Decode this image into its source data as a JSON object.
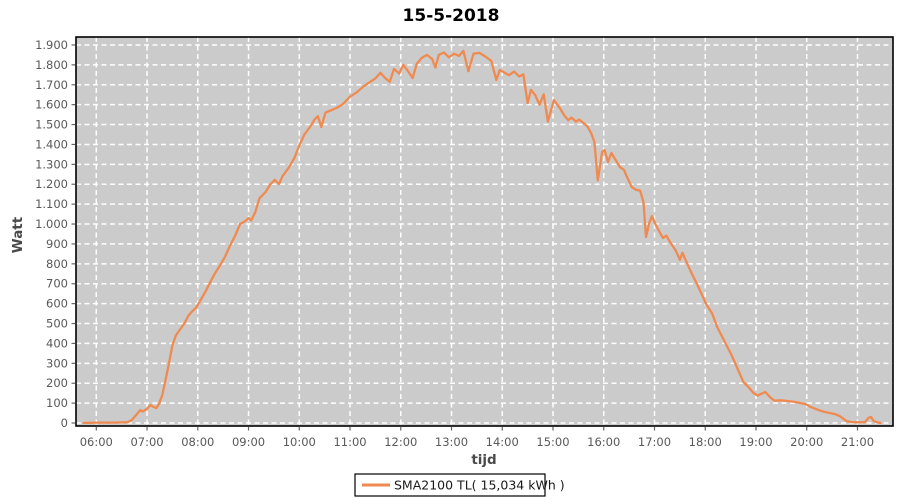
{
  "chart_data": {
    "type": "line",
    "title": "15-5-2018",
    "xlabel": "tijd",
    "ylabel": "Watt",
    "plot": {
      "background_color": "#CBCBCB",
      "grid_color": "#FFFFFF",
      "grid_style": "dashed",
      "border_color": "#000000",
      "outer_background": "#FFFFFF"
    },
    "x_axis": {
      "range_minutes": [
        336,
        1302
      ],
      "tick_interval": "1 hour",
      "tick_labels": [
        "06:00",
        "07:00",
        "08:00",
        "09:00",
        "10:00",
        "11:00",
        "12:00",
        "13:00",
        "14:00",
        "15:00",
        "16:00",
        "17:00",
        "18:00",
        "19:00",
        "20:00",
        "21:00"
      ]
    },
    "y_axis": {
      "range": [
        -15,
        1940
      ],
      "tick_step": 100,
      "tick_labels": [
        "0",
        "100",
        "200",
        "300",
        "400",
        "500",
        "600",
        "700",
        "800",
        "900",
        "1.000",
        "1.100",
        "1.200",
        "1.300",
        "1.400",
        "1.500",
        "1.600",
        "1.700",
        "1.800",
        "1.900"
      ]
    },
    "legend": {
      "label": "SMA2100 TL( 15,034 kWh )",
      "position": "bottom-center",
      "swatch_color": "#EF8A50",
      "box_border": "#000000",
      "box_background": "#FFFFFF"
    },
    "series": [
      {
        "name": "SMA2100 TL",
        "color": "#EF8A50",
        "points": [
          [
            "05:45",
            0
          ],
          [
            "05:52",
            1
          ],
          [
            "06:00",
            2
          ],
          [
            "06:10",
            2
          ],
          [
            "06:20",
            2
          ],
          [
            "06:30",
            3
          ],
          [
            "06:37",
            4
          ],
          [
            "06:42",
            15
          ],
          [
            "06:47",
            40
          ],
          [
            "06:52",
            65
          ],
          [
            "06:55",
            58
          ],
          [
            "07:00",
            72
          ],
          [
            "07:04",
            90
          ],
          [
            "07:07",
            82
          ],
          [
            "07:11",
            75
          ],
          [
            "07:14",
            95
          ],
          [
            "07:18",
            140
          ],
          [
            "07:21",
            200
          ],
          [
            "07:25",
            280
          ],
          [
            "07:30",
            390
          ],
          [
            "07:34",
            440
          ],
          [
            "07:39",
            470
          ],
          [
            "07:44",
            500
          ],
          [
            "07:49",
            540
          ],
          [
            "07:53",
            560
          ],
          [
            "07:58",
            580
          ],
          [
            "08:03",
            615
          ],
          [
            "08:09",
            660
          ],
          [
            "08:15",
            710
          ],
          [
            "08:20",
            750
          ],
          [
            "08:26",
            790
          ],
          [
            "08:32",
            835
          ],
          [
            "08:38",
            890
          ],
          [
            "08:44",
            940
          ],
          [
            "08:50",
            1000
          ],
          [
            "08:56",
            1015
          ],
          [
            "09:00",
            1030
          ],
          [
            "09:03",
            1018
          ],
          [
            "09:08",
            1060
          ],
          [
            "09:13",
            1130
          ],
          [
            "09:20",
            1160
          ],
          [
            "09:26",
            1200
          ],
          [
            "09:31",
            1222
          ],
          [
            "09:36",
            1200
          ],
          [
            "09:40",
            1240
          ],
          [
            "09:47",
            1280
          ],
          [
            "09:54",
            1330
          ],
          [
            "10:00",
            1395
          ],
          [
            "10:06",
            1450
          ],
          [
            "10:13",
            1490
          ],
          [
            "10:18",
            1525
          ],
          [
            "10:22",
            1542
          ],
          [
            "10:26",
            1488
          ],
          [
            "10:31",
            1560
          ],
          [
            "10:38",
            1572
          ],
          [
            "10:45",
            1585
          ],
          [
            "10:52",
            1605
          ],
          [
            "11:00",
            1640
          ],
          [
            "11:08",
            1662
          ],
          [
            "11:16",
            1692
          ],
          [
            "11:24",
            1715
          ],
          [
            "11:30",
            1732
          ],
          [
            "11:36",
            1760
          ],
          [
            "11:41",
            1736
          ],
          [
            "11:47",
            1715
          ],
          [
            "11:52",
            1780
          ],
          [
            "11:58",
            1756
          ],
          [
            "12:03",
            1800
          ],
          [
            "12:08",
            1772
          ],
          [
            "12:14",
            1734
          ],
          [
            "12:19",
            1806
          ],
          [
            "12:25",
            1836
          ],
          [
            "12:31",
            1850
          ],
          [
            "12:37",
            1830
          ],
          [
            "12:41",
            1786
          ],
          [
            "12:45",
            1850
          ],
          [
            "12:51",
            1862
          ],
          [
            "12:57",
            1838
          ],
          [
            "13:03",
            1856
          ],
          [
            "13:09",
            1845
          ],
          [
            "13:14",
            1870
          ],
          [
            "13:20",
            1768
          ],
          [
            "13:26",
            1856
          ],
          [
            "13:33",
            1860
          ],
          [
            "13:40",
            1842
          ],
          [
            "13:47",
            1820
          ],
          [
            "13:53",
            1724
          ],
          [
            "13:57",
            1774
          ],
          [
            "14:02",
            1762
          ],
          [
            "14:08",
            1748
          ],
          [
            "14:14",
            1766
          ],
          [
            "14:20",
            1742
          ],
          [
            "14:25",
            1752
          ],
          [
            "14:30",
            1608
          ],
          [
            "14:34",
            1674
          ],
          [
            "14:39",
            1648
          ],
          [
            "14:44",
            1600
          ],
          [
            "14:49",
            1652
          ],
          [
            "14:54",
            1515
          ],
          [
            "15:01",
            1623
          ],
          [
            "15:08",
            1583
          ],
          [
            "15:13",
            1548
          ],
          [
            "15:18",
            1522
          ],
          [
            "15:22",
            1535
          ],
          [
            "15:27",
            1515
          ],
          [
            "15:31",
            1525
          ],
          [
            "15:36",
            1508
          ],
          [
            "15:41",
            1488
          ],
          [
            "15:45",
            1457
          ],
          [
            "15:49",
            1413
          ],
          [
            "15:53",
            1220
          ],
          [
            "15:58",
            1362
          ],
          [
            "16:01",
            1372
          ],
          [
            "16:05",
            1312
          ],
          [
            "16:09",
            1357
          ],
          [
            "16:14",
            1322
          ],
          [
            "16:19",
            1287
          ],
          [
            "16:24",
            1272
          ],
          [
            "16:28",
            1232
          ],
          [
            "16:33",
            1186
          ],
          [
            "16:38",
            1172
          ],
          [
            "16:43",
            1168
          ],
          [
            "16:47",
            1110
          ],
          [
            "16:50",
            935
          ],
          [
            "16:54",
            1008
          ],
          [
            "16:57",
            1040
          ],
          [
            "17:01",
            1000
          ],
          [
            "17:05",
            968
          ],
          [
            "17:10",
            930
          ],
          [
            "17:14",
            942
          ],
          [
            "17:19",
            905
          ],
          [
            "17:25",
            868
          ],
          [
            "17:30",
            820
          ],
          [
            "17:33",
            856
          ],
          [
            "17:38",
            808
          ],
          [
            "17:43",
            760
          ],
          [
            "17:50",
            700
          ],
          [
            "17:56",
            645
          ],
          [
            "18:01",
            598
          ],
          [
            "18:08",
            552
          ],
          [
            "18:14",
            483
          ],
          [
            "18:22",
            417
          ],
          [
            "18:31",
            342
          ],
          [
            "18:39",
            266
          ],
          [
            "18:45",
            206
          ],
          [
            "18:51",
            181
          ],
          [
            "18:57",
            151
          ],
          [
            "19:02",
            138
          ],
          [
            "19:07",
            148
          ],
          [
            "19:11",
            156
          ],
          [
            "19:17",
            128
          ],
          [
            "19:22",
            112
          ],
          [
            "19:30",
            114
          ],
          [
            "19:38",
            110
          ],
          [
            "19:46",
            106
          ],
          [
            "19:53",
            100
          ],
          [
            "19:59",
            94
          ],
          [
            "20:04",
            82
          ],
          [
            "20:10",
            72
          ],
          [
            "20:16",
            62
          ],
          [
            "20:22",
            55
          ],
          [
            "20:28",
            50
          ],
          [
            "20:34",
            44
          ],
          [
            "20:39",
            35
          ],
          [
            "20:43",
            22
          ],
          [
            "20:47",
            10
          ],
          [
            "20:52",
            5
          ],
          [
            "20:58",
            4
          ],
          [
            "21:04",
            3
          ],
          [
            "21:09",
            5
          ],
          [
            "21:13",
            26
          ],
          [
            "21:16",
            30
          ],
          [
            "21:19",
            11
          ],
          [
            "21:23",
            4
          ],
          [
            "21:27",
            0
          ]
        ]
      }
    ]
  }
}
